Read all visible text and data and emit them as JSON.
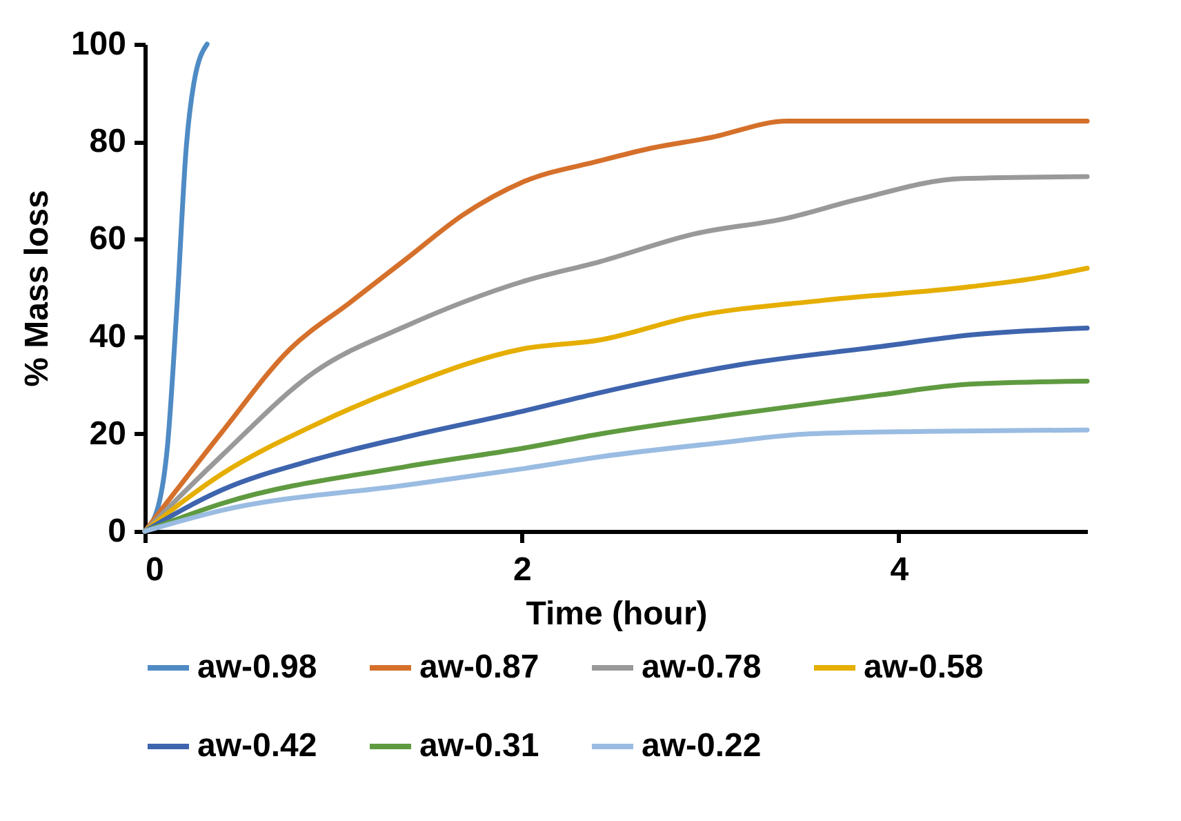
{
  "chart_data": {
    "type": "line",
    "xlabel": "Time (hour)",
    "ylabel": "%  Mass loss",
    "xlim": [
      0,
      5
    ],
    "xticks": [
      0,
      2,
      4
    ],
    "ylim": [
      0,
      100
    ],
    "yticks": [
      0,
      20,
      40,
      60,
      80,
      100
    ],
    "grid": false,
    "legend": "bottom",
    "marker": "none",
    "line_style": "solid",
    "series": [
      {
        "name": "aw-0.98",
        "color": "#4f8bc4",
        "x": [
          0,
          0.07,
          0.12,
          0.17,
          0.22,
          0.26,
          0.33
        ],
        "values": [
          0,
          5,
          17.5,
          46,
          79,
          92,
          100
        ]
      },
      {
        "name": "aw-0.87",
        "color": "#d5702b",
        "x": [
          0,
          0.41,
          0.77,
          1.09,
          1.39,
          1.69,
          2.0,
          2.42,
          2.67,
          3.0,
          3.41,
          4.0,
          5.0
        ],
        "values": [
          0,
          20.4,
          37.4,
          47,
          56,
          65,
          71.6,
          76.1,
          78.5,
          80.8,
          84.2,
          84.2,
          84.2
        ]
      },
      {
        "name": "aw-0.78",
        "color": "#999999",
        "x": [
          0,
          0.41,
          0.9,
          1.39,
          2.0,
          2.42,
          2.91,
          3.41,
          3.78,
          4.34,
          5.0
        ],
        "values": [
          0,
          15.6,
          32.7,
          42.2,
          51.2,
          55.4,
          61,
          64.3,
          68.1,
          72.4,
          72.8
        ]
      },
      {
        "name": "aw-0.58",
        "color": "#e5ae00",
        "x": [
          0,
          0.41,
          0.9,
          1.39,
          2.0,
          2.42,
          2.91,
          3.6,
          4.38,
          4.75,
          5.0
        ],
        "values": [
          0,
          11.8,
          21.8,
          29.9,
          37.4,
          39.3,
          44.1,
          47.4,
          50.2,
          52.1,
          54
        ]
      },
      {
        "name": "aw-0.42",
        "color": "#3e64ad",
        "x": [
          0,
          0.41,
          0.9,
          1.39,
          2.0,
          2.42,
          3.16,
          3.9,
          4.38,
          5.0
        ],
        "values": [
          0,
          8.5,
          14.7,
          19.4,
          24.6,
          28.5,
          34.2,
          37.9,
          40.3,
          41.7
        ]
      },
      {
        "name": "aw-0.31",
        "color": "#5f9a40",
        "x": [
          0,
          0.41,
          1.39,
          2.0,
          2.42,
          3.16,
          3.9,
          4.38,
          5.0
        ],
        "values": [
          0,
          5.7,
          13.3,
          17,
          20,
          24.2,
          28,
          30.2,
          30.8
        ]
      },
      {
        "name": "aw-0.22",
        "color": "#9abce2",
        "x": [
          0,
          0.41,
          1.39,
          2.0,
          2.42,
          3.04,
          3.53,
          4.15,
          5.0
        ],
        "values": [
          0,
          4.3,
          9.5,
          12.8,
          15.3,
          18.1,
          20,
          20.5,
          20.8
        ]
      }
    ]
  }
}
